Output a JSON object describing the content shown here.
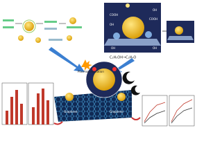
{
  "reaction": "C₂H₅OH→C₂H₄O",
  "plasmon": "Plasmon excitation",
  "graphene": [
    "Graphene",
    "Graphene"
  ],
  "oh": [
    "OH",
    "OH",
    "OH",
    "OH"
  ],
  "cooh": [
    "COOH",
    "COOH"
  ]
}
